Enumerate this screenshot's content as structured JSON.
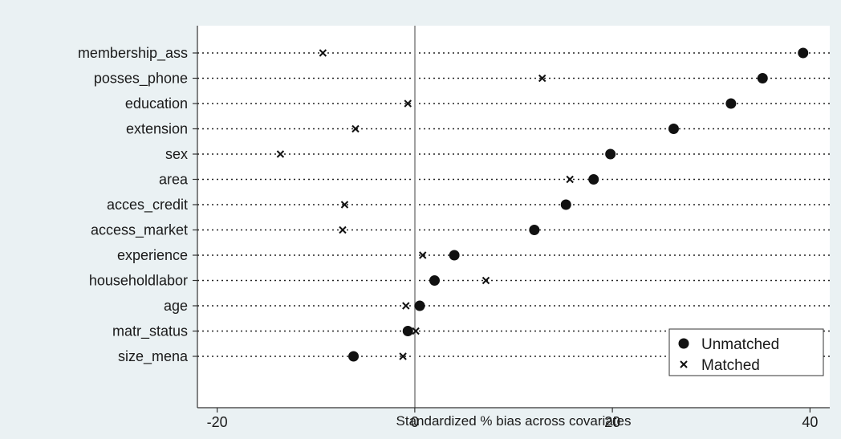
{
  "chart_data": {
    "type": "scatter",
    "title": "",
    "xlabel": "Standardized % bias across covariates",
    "ylabel": "",
    "xlim": [
      -22,
      42
    ],
    "xticks": [
      -20,
      0,
      20,
      40
    ],
    "grid": "dotted horizontal lines per covariate",
    "legend_position": "bottom-right",
    "categories": [
      "membership_ass",
      "posses_phone",
      "education",
      "extension",
      "sex",
      "area",
      "acces_credit",
      "access_market",
      "experience",
      "householdlabor",
      "age",
      "matr_status",
      "size_mena"
    ],
    "series": [
      {
        "name": "Unmatched",
        "marker": "filled-circle",
        "values": [
          39.3,
          35.2,
          32.0,
          26.2,
          19.8,
          18.1,
          15.3,
          12.1,
          4.0,
          2.0,
          0.5,
          -0.7,
          -6.2
        ]
      },
      {
        "name": "Matched",
        "marker": "x",
        "values": [
          -9.3,
          12.9,
          -0.7,
          -6.0,
          -13.6,
          15.7,
          -7.1,
          -7.3,
          0.8,
          7.2,
          -0.9,
          0.1,
          -1.2
        ]
      }
    ]
  },
  "colors": {
    "background": "#eaf1f3",
    "plot_area": "#ffffff",
    "marker": "#111111",
    "zero_line": "#a0a0a0"
  }
}
